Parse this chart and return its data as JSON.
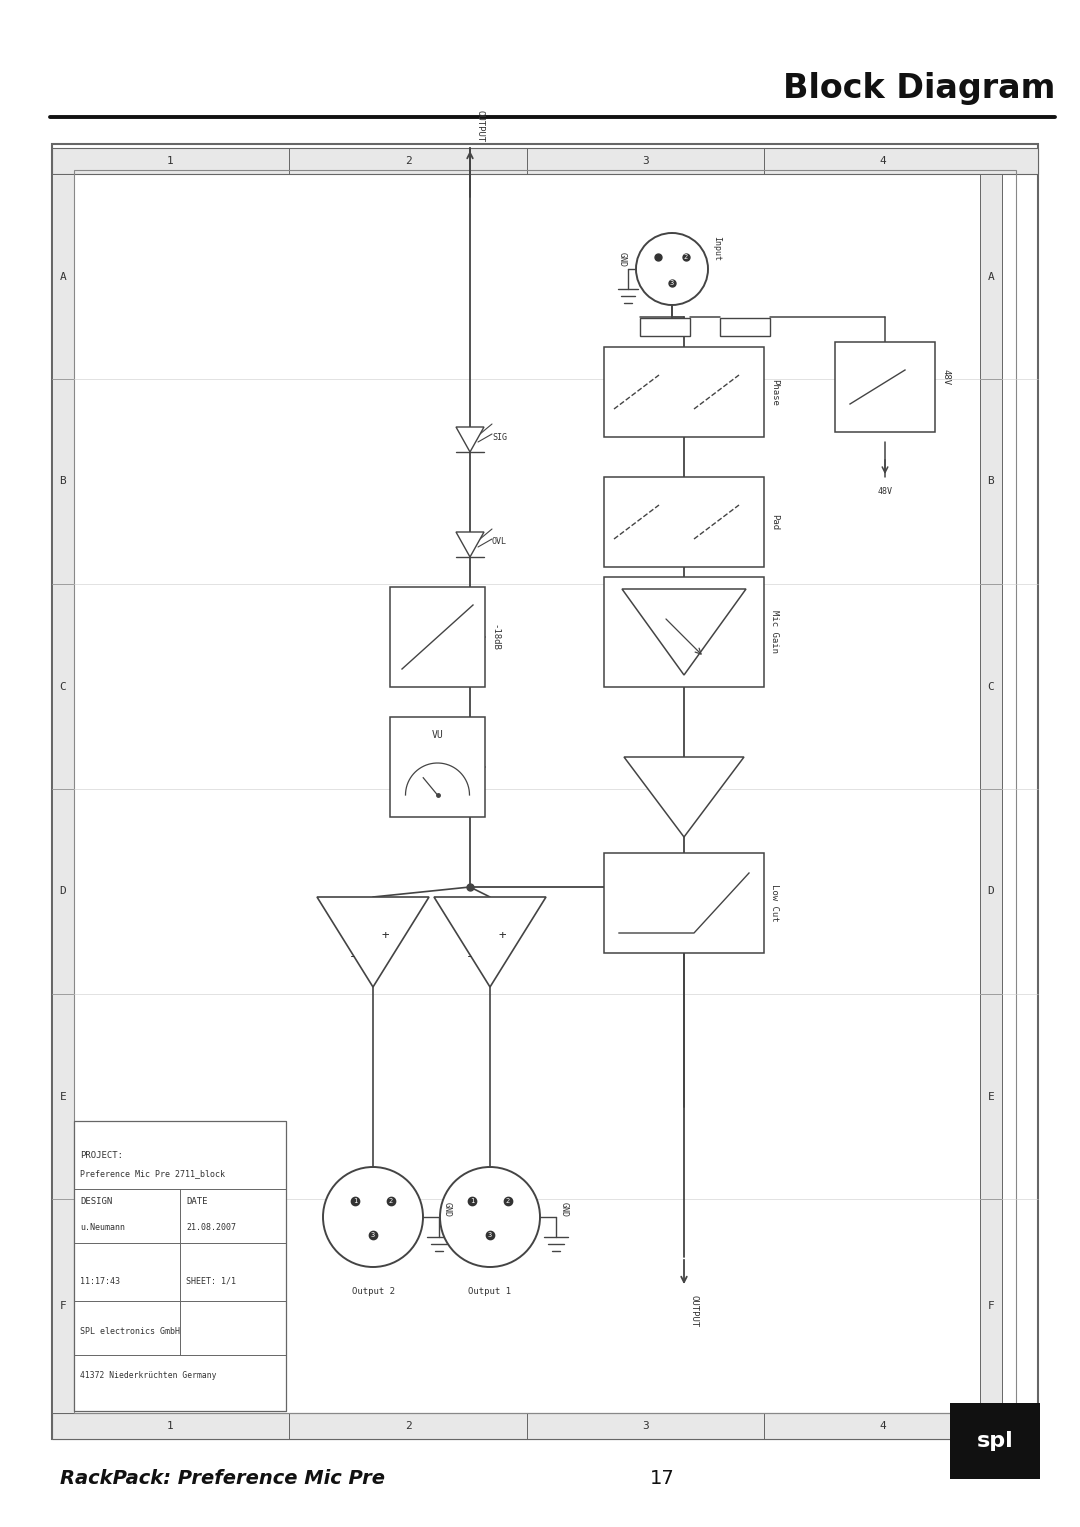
{
  "title": "Block Diagram",
  "subtitle": "RackPack: Preference Mic Pre",
  "page_number": "17",
  "bg_color": "#ffffff",
  "lc": "#333333",
  "grid_cols": [
    "1",
    "2",
    "3",
    "4"
  ],
  "grid_rows": [
    "A",
    "B",
    "C",
    "D",
    "E",
    "F"
  ],
  "project_line1": "PROJECT:  Preference Mic Pre 2711_block",
  "design_label": "DESIGN",
  "date_label": "DATE",
  "designer": "u.Neumann",
  "date_val": "21.08.2007",
  "time_val": "11:17:43",
  "sheet_val": "SHEET: 1/1",
  "company": "SPL electronics GmbH",
  "address": "41372 Niederkrüchten Germany"
}
